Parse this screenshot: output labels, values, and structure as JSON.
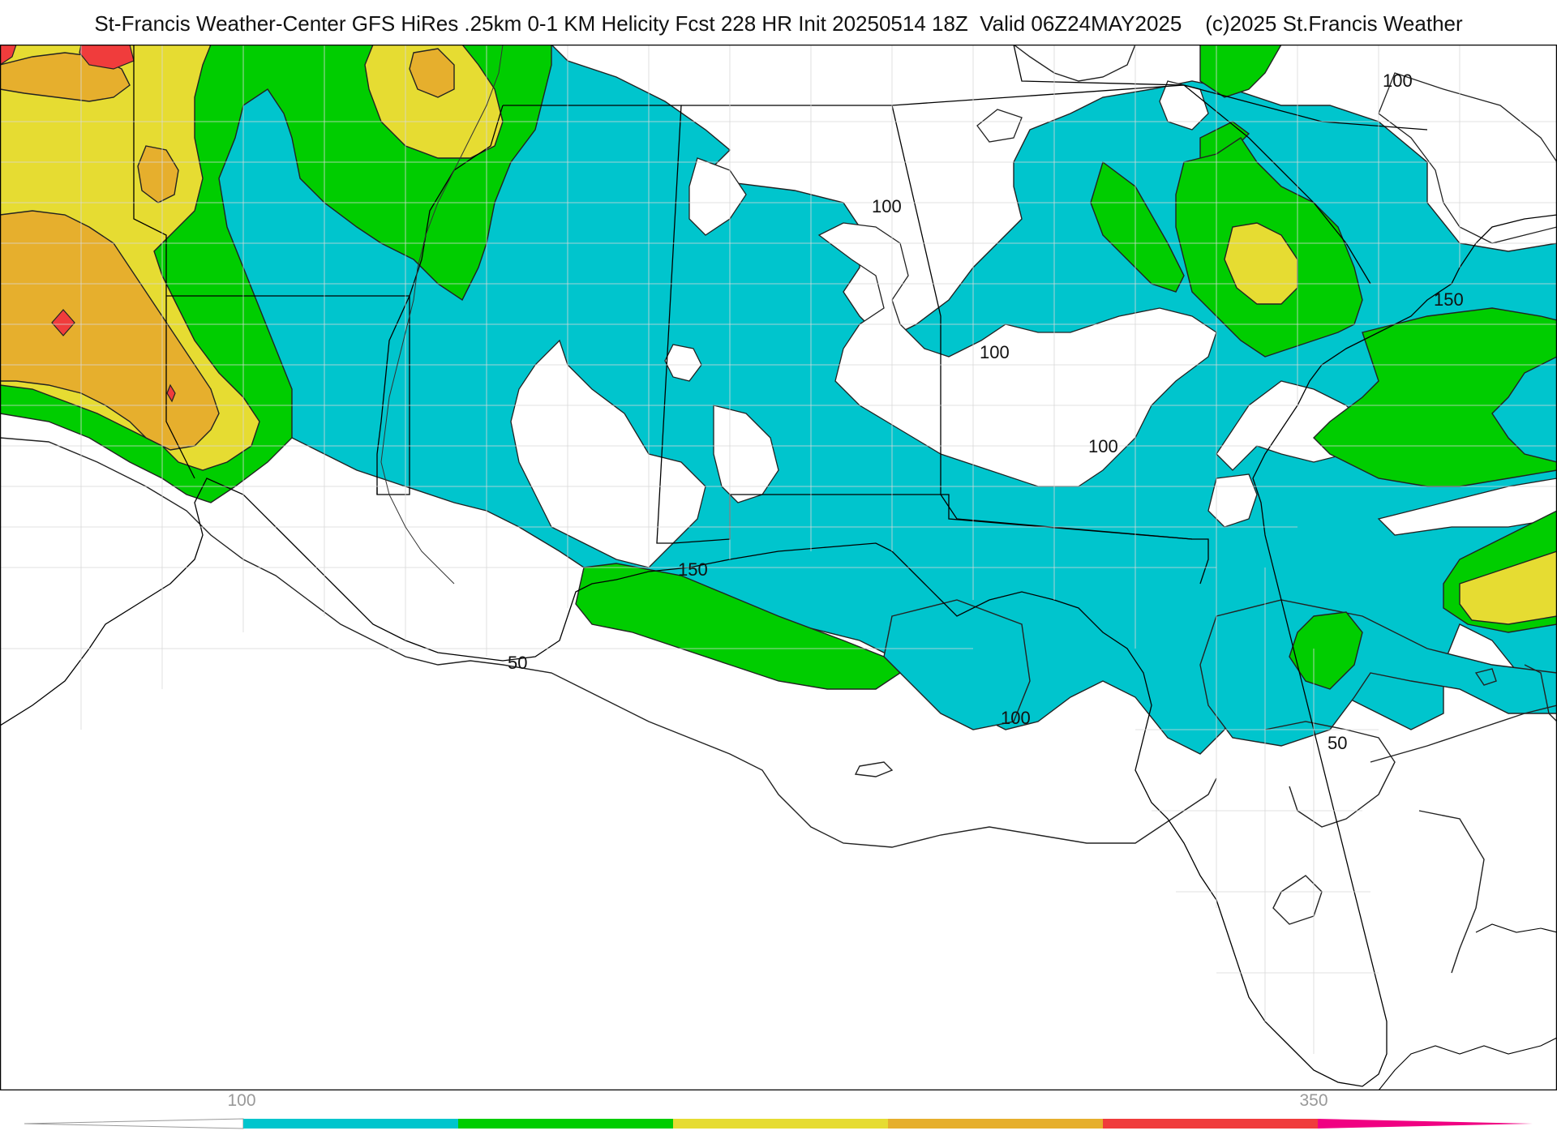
{
  "title": "St-Francis Weather-Center GFS HiRes .25km 0-1 KM Helicity Fcst 228 HR Init 20250514 18Z  Valid 06Z24MAY2025    (c)2025 St.Francis Weather",
  "contour_labels": [
    "100",
    "100",
    "100",
    "100",
    "150",
    "150",
    "50",
    "100",
    "50"
  ],
  "colorbar": {
    "tick_low": "100",
    "tick_high": "350",
    "colors": [
      "#00c5cd",
      "#00cd00",
      "#e6dc32",
      "#e6af2d",
      "#f03c3c",
      "#f00082"
    ]
  },
  "colors": {
    "helicity_100": "#00c5cd",
    "helicity_150": "#00cd00",
    "helicity_200": "#e6dc32",
    "helicity_250": "#e6af2d",
    "helicity_300": "#f03c3c",
    "helicity_350": "#f00082"
  }
}
